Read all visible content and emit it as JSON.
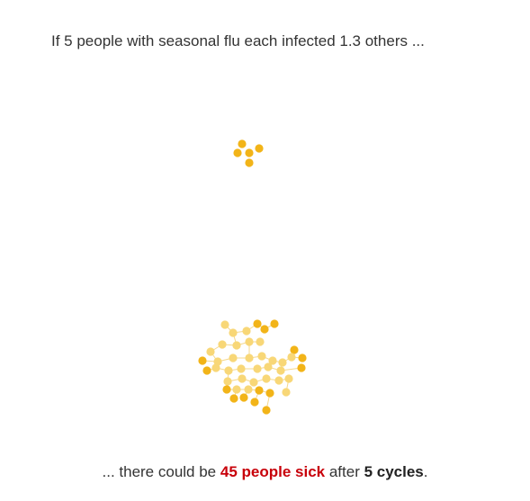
{
  "intro": {
    "text": "If 5 people with seasonal flu each infected 1.3 others ..."
  },
  "outro": {
    "prefix": "... there could be ",
    "sick_text": "45 people sick",
    "middle": " after ",
    "cycles_text": "5 cycles",
    "suffix": "."
  },
  "colors": {
    "dot_dark": "#f2b418",
    "dot_light": "#f8d777",
    "link": "#f5d88c",
    "highlight": "#c8000a"
  }
}
